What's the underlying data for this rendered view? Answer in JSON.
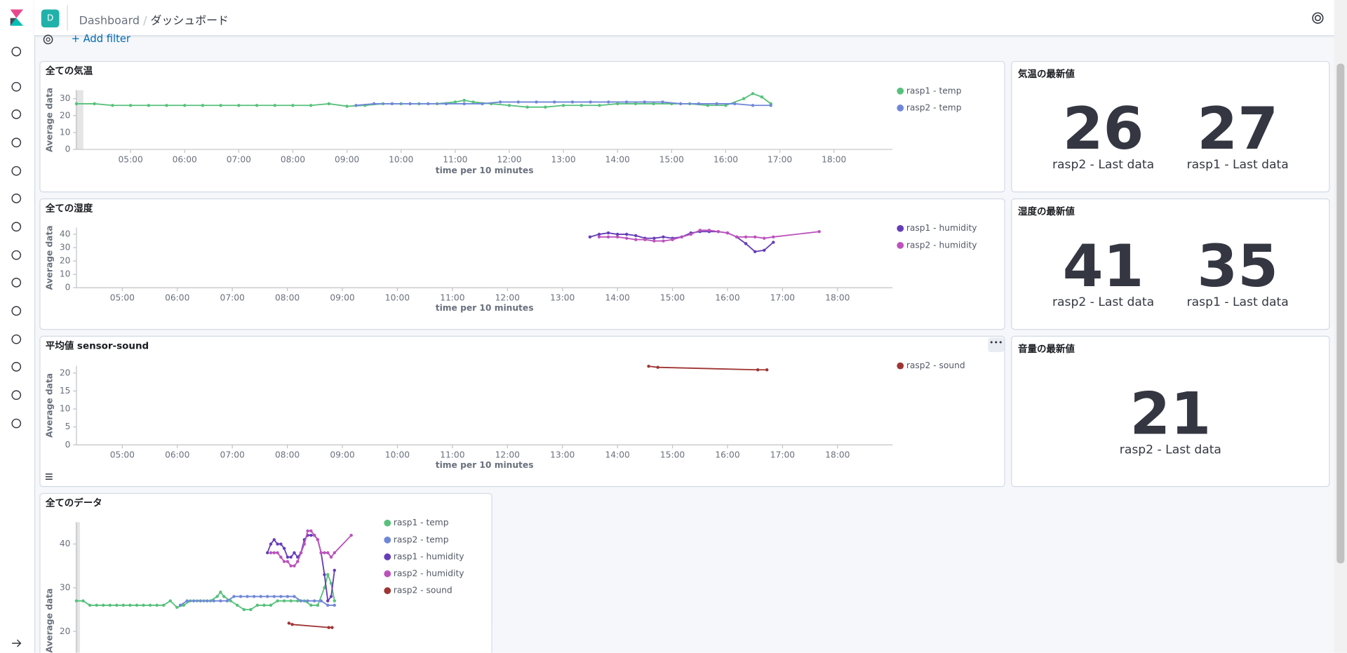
{
  "header": {
    "avatar": "D",
    "breadcrumbs": [
      "Dashboard",
      "ダッシュボード"
    ]
  },
  "filter": {
    "add": "+ Add filter"
  },
  "chart_data": [
    {
      "type": "line",
      "title": "全ての気温",
      "y_label": "Average data",
      "x_label": "time per 10 minutes",
      "xlim": [
        240,
        1145
      ],
      "ylim": [
        0,
        35
      ],
      "yticks": [
        0,
        10,
        20,
        30
      ],
      "xticks": [
        {
          "value": 300,
          "label": "05:00"
        },
        {
          "value": 360,
          "label": "06:00"
        },
        {
          "value": 420,
          "label": "07:00"
        },
        {
          "value": 480,
          "label": "08:00"
        },
        {
          "value": 540,
          "label": "09:00"
        },
        {
          "value": 600,
          "label": "10:00"
        },
        {
          "value": 660,
          "label": "11:00"
        },
        {
          "value": 720,
          "label": "12:00"
        },
        {
          "value": 780,
          "label": "13:00"
        },
        {
          "value": 840,
          "label": "14:00"
        },
        {
          "value": 900,
          "label": "15:00"
        },
        {
          "value": 960,
          "label": "16:00"
        },
        {
          "value": 1020,
          "label": "17:00"
        },
        {
          "value": 1080,
          "label": "18:00"
        }
      ],
      "series": [
        {
          "name": "rasp1 - temp",
          "color": "#57c17b",
          "x": [
            240,
            260,
            280,
            300,
            320,
            340,
            360,
            380,
            400,
            420,
            440,
            460,
            480,
            500,
            520,
            540,
            560,
            580,
            600,
            620,
            640,
            660,
            670,
            680,
            700,
            720,
            740,
            760,
            780,
            800,
            820,
            840,
            860,
            880,
            900,
            920,
            940,
            960,
            980,
            990,
            1000,
            1010
          ],
          "values": [
            27,
            27,
            26,
            26,
            26,
            26,
            26,
            26,
            26,
            26,
            26,
            26,
            26,
            26,
            27,
            25.5,
            26,
            27,
            27,
            27,
            27,
            28,
            29,
            28,
            27,
            26,
            25,
            25,
            26,
            26,
            26,
            27,
            27,
            27,
            27,
            27,
            26,
            26,
            30,
            33,
            31,
            27
          ]
        },
        {
          "name": "rasp2 - temp",
          "color": "#6f87d8",
          "x": [
            550,
            570,
            590,
            610,
            630,
            650,
            670,
            690,
            710,
            730,
            750,
            770,
            790,
            810,
            830,
            850,
            870,
            890,
            910,
            930,
            950,
            970,
            990,
            1010
          ],
          "values": [
            26,
            27,
            27,
            27,
            27,
            27,
            27,
            27,
            28,
            28,
            28,
            28,
            28,
            28,
            28,
            28,
            28,
            28,
            27,
            27,
            27,
            27,
            26,
            26
          ]
        }
      ]
    },
    {
      "type": "line",
      "title": "全ての湿度",
      "y_label": "Average data",
      "x_label": "time per 10 minutes",
      "xlim": [
        250,
        1140
      ],
      "ylim": [
        0,
        45
      ],
      "yticks": [
        0,
        10,
        20,
        30,
        40
      ],
      "xticks": [
        {
          "value": 300,
          "label": "05:00"
        },
        {
          "value": 360,
          "label": "06:00"
        },
        {
          "value": 420,
          "label": "07:00"
        },
        {
          "value": 480,
          "label": "08:00"
        },
        {
          "value": 540,
          "label": "09:00"
        },
        {
          "value": 600,
          "label": "10:00"
        },
        {
          "value": 660,
          "label": "11:00"
        },
        {
          "value": 720,
          "label": "12:00"
        },
        {
          "value": 780,
          "label": "13:00"
        },
        {
          "value": 840,
          "label": "14:00"
        },
        {
          "value": 900,
          "label": "15:00"
        },
        {
          "value": 960,
          "label": "16:00"
        },
        {
          "value": 1020,
          "label": "17:00"
        },
        {
          "value": 1080,
          "label": "18:00"
        }
      ],
      "series": [
        {
          "name": "rasp1 - humidity",
          "color": "#663db8",
          "x": [
            810,
            820,
            830,
            840,
            850,
            860,
            870,
            880,
            890,
            900,
            910,
            920,
            930,
            940,
            950,
            960,
            970,
            980,
            990,
            1000,
            1010
          ],
          "values": [
            38,
            40,
            41,
            40,
            40,
            39,
            37,
            37,
            38,
            37,
            38,
            41,
            42,
            42,
            42,
            41,
            38,
            33,
            27,
            28,
            34
          ]
        },
        {
          "name": "rasp2 - humidity",
          "color": "#bc52bc",
          "x": [
            820,
            830,
            840,
            850,
            860,
            870,
            880,
            890,
            900,
            910,
            920,
            930,
            940,
            950,
            960,
            970,
            980,
            990,
            1000,
            1010,
            1060
          ],
          "values": [
            38,
            38,
            38,
            37,
            36,
            36,
            35,
            35,
            36,
            38,
            40,
            43,
            43,
            42,
            41,
            38,
            38,
            38,
            37,
            38,
            42
          ]
        }
      ]
    },
    {
      "type": "line",
      "title": "平均値 sensor-sound",
      "y_label": "Average data",
      "x_label": "time per 10 minutes",
      "xlim": [
        250,
        1140
      ],
      "ylim": [
        0,
        22
      ],
      "yticks": [
        0,
        5,
        10,
        15,
        20
      ],
      "xticks": [
        {
          "value": 300,
          "label": "05:00"
        },
        {
          "value": 360,
          "label": "06:00"
        },
        {
          "value": 420,
          "label": "07:00"
        },
        {
          "value": 480,
          "label": "08:00"
        },
        {
          "value": 540,
          "label": "09:00"
        },
        {
          "value": 600,
          "label": "10:00"
        },
        {
          "value": 660,
          "label": "11:00"
        },
        {
          "value": 720,
          "label": "12:00"
        },
        {
          "value": 780,
          "label": "13:00"
        },
        {
          "value": 840,
          "label": "14:00"
        },
        {
          "value": 900,
          "label": "15:00"
        },
        {
          "value": 960,
          "label": "16:00"
        },
        {
          "value": 1020,
          "label": "17:00"
        },
        {
          "value": 1080,
          "label": "18:00"
        }
      ],
      "series": [
        {
          "name": "rasp2 - sound",
          "color": "#9e3533",
          "x": [
            874,
            884,
            993,
            1003
          ],
          "values": [
            21.9,
            21.6,
            20.9,
            20.9
          ]
        }
      ]
    },
    {
      "type": "line",
      "title": "全てのデータ",
      "y_label": "Average data",
      "xlim": [
        240,
        1127
      ],
      "ylim": [
        0,
        45
      ],
      "yticks": [
        20,
        30,
        40
      ],
      "series": [
        {
          "name": "rasp1 - temp",
          "color": "#57c17b",
          "x": [
            240,
            260,
            280,
            300,
            320,
            340,
            360,
            380,
            400,
            420,
            440,
            460,
            480,
            500,
            520,
            540,
            560,
            580,
            600,
            620,
            640,
            660,
            670,
            680,
            700,
            720,
            740,
            760,
            780,
            800,
            820,
            840,
            860,
            880,
            900,
            920,
            940,
            960,
            980,
            990,
            1000,
            1010
          ],
          "values": [
            27,
            27,
            26,
            26,
            26,
            26,
            26,
            26,
            26,
            26,
            26,
            26,
            26,
            26,
            27,
            25.5,
            26,
            27,
            27,
            27,
            27,
            28,
            29,
            28,
            27,
            26,
            25,
            25,
            26,
            26,
            26,
            27,
            27,
            27,
            27,
            27,
            26,
            26,
            30,
            33,
            31,
            27
          ]
        },
        {
          "name": "rasp2 - temp",
          "color": "#6f87d8",
          "x": [
            550,
            570,
            590,
            610,
            630,
            650,
            670,
            690,
            710,
            730,
            750,
            770,
            790,
            810,
            830,
            850,
            870,
            890,
            910,
            930,
            950,
            970,
            990,
            1010
          ],
          "values": [
            26,
            27,
            27,
            27,
            27,
            27,
            27,
            27,
            28,
            28,
            28,
            28,
            28,
            28,
            28,
            28,
            28,
            28,
            27,
            27,
            27,
            27,
            26,
            26
          ]
        },
        {
          "name": "rasp1 - humidity",
          "color": "#663db8",
          "x": [
            810,
            820,
            830,
            840,
            850,
            860,
            870,
            880,
            890,
            900,
            910,
            920,
            930,
            940,
            950,
            960,
            970,
            980,
            990,
            1000,
            1010
          ],
          "values": [
            38,
            40,
            41,
            40,
            40,
            39,
            37,
            37,
            38,
            37,
            38,
            41,
            42,
            42,
            42,
            41,
            38,
            33,
            27,
            28,
            34
          ]
        },
        {
          "name": "rasp2 - humidity",
          "color": "#bc52bc",
          "x": [
            820,
            830,
            840,
            850,
            860,
            870,
            880,
            890,
            900,
            910,
            920,
            930,
            940,
            950,
            960,
            970,
            980,
            990,
            1000,
            1010,
            1060
          ],
          "values": [
            38,
            38,
            38,
            37,
            36,
            36,
            35,
            35,
            36,
            38,
            40,
            43,
            43,
            42,
            41,
            38,
            38,
            38,
            37,
            38,
            42
          ]
        },
        {
          "name": "rasp2 - sound",
          "color": "#9e3533",
          "x": [
            874,
            884,
            993,
            1003
          ],
          "values": [
            21.9,
            21.6,
            20.9,
            20.9
          ]
        }
      ]
    }
  ],
  "metrics": [
    {
      "title": "気温の最新値",
      "items": [
        {
          "value": 26,
          "label": "rasp2 - Last data"
        },
        {
          "value": 27,
          "label": "rasp1 - Last data"
        }
      ]
    },
    {
      "title": "湿度の最新値",
      "items": [
        {
          "value": 41,
          "label": "rasp2 - Last data"
        },
        {
          "value": 35,
          "label": "rasp1 - Last data"
        }
      ]
    },
    {
      "title": "音量の最新値",
      "items": [
        {
          "value": 21,
          "label": "rasp2 - Last data"
        }
      ]
    }
  ]
}
